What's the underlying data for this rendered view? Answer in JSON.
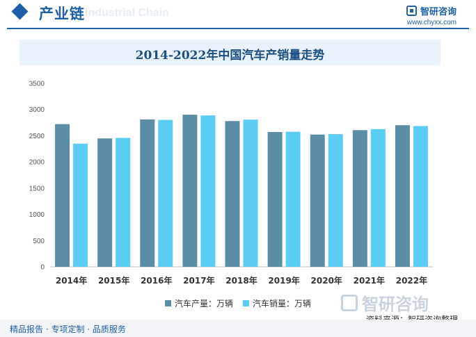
{
  "header": {
    "section_title": "产业链",
    "watermark_en": "Industrial Chain",
    "brand_name": "智研咨询",
    "brand_url": "www.chyxx.com"
  },
  "footer": {
    "source": "资料来源：智研咨询整理",
    "tagline": "精品报告 · 专项定制 · 品质服务",
    "watermark_brand": "智研咨询"
  },
  "colors": {
    "accent": "#1f5fa8",
    "production": "#5b8ea6",
    "sales": "#5ccdf2"
  },
  "chart_data": {
    "type": "bar",
    "title": "2014-2022年中国汽车产销量走势",
    "categories": [
      "2014年",
      "2015年",
      "2016年",
      "2017年",
      "2018年",
      "2019年",
      "2020年",
      "2021年",
      "2022年"
    ],
    "series": [
      {
        "name": "汽车产量：万辆",
        "color": "#5b8ea6",
        "values": [
          2722,
          2450,
          2812,
          2902,
          2781,
          2572,
          2523,
          2608,
          2702
        ]
      },
      {
        "name": "汽车销量：万辆",
        "color": "#5ccdf2",
        "values": [
          2349,
          2460,
          2803,
          2888,
          2808,
          2577,
          2531,
          2628,
          2686
        ]
      }
    ],
    "ylim": [
      0,
      3500
    ],
    "yticks": [
      0,
      500,
      1000,
      1500,
      2000,
      2500,
      3000,
      3500
    ],
    "legend_position": "bottom",
    "grid": false
  }
}
